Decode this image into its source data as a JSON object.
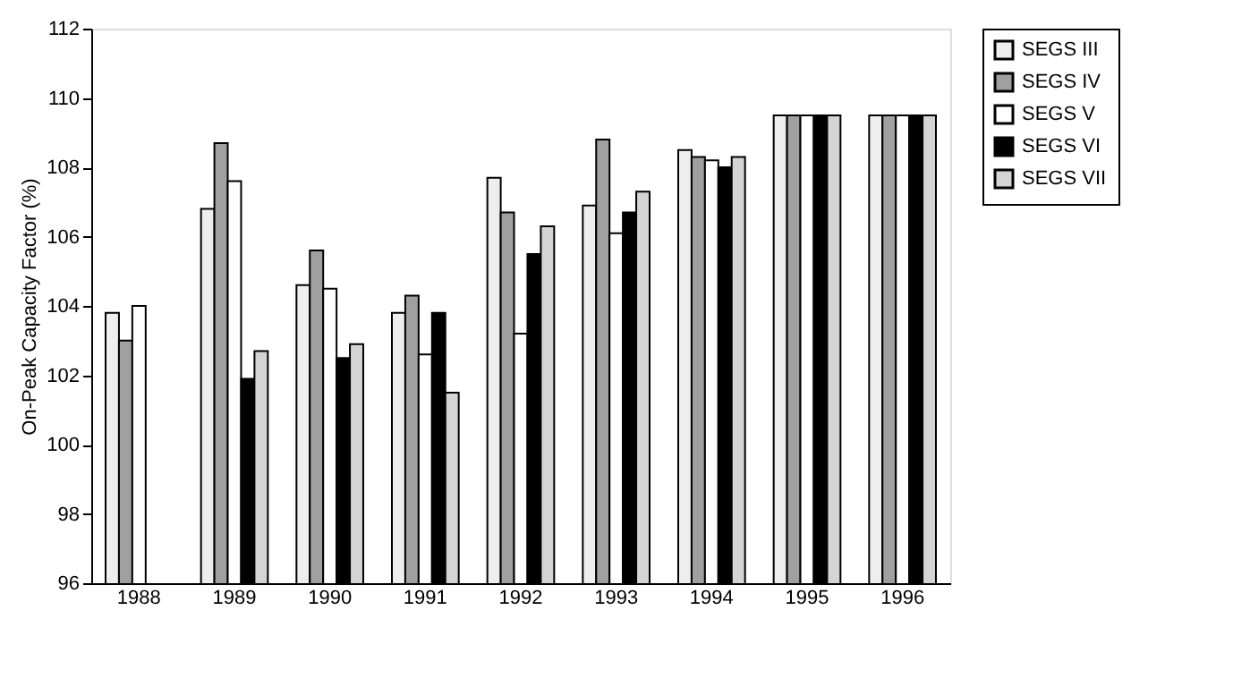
{
  "chart_data": {
    "type": "bar",
    "ylabel": "On-Peak Capacity Factor (%)",
    "categories": [
      "1988",
      "1989",
      "1990",
      "1991",
      "1992",
      "1993",
      "1994",
      "1995",
      "1996"
    ],
    "series": [
      {
        "name": "SEGS III",
        "color": "#eeeeee",
        "values": [
          103.8,
          106.8,
          104.6,
          103.8,
          107.7,
          106.9,
          108.5,
          109.5,
          109.5
        ]
      },
      {
        "name": "SEGS IV",
        "color": "#a0a0a0",
        "values": [
          103.0,
          108.7,
          105.6,
          104.3,
          106.7,
          108.8,
          108.3,
          109.5,
          109.5
        ]
      },
      {
        "name": "SEGS V",
        "color": "#ffffff",
        "values": [
          104.0,
          107.6,
          104.5,
          102.6,
          103.2,
          106.1,
          108.2,
          109.5,
          109.5
        ]
      },
      {
        "name": "SEGS VI",
        "color": "#000000",
        "values": [
          null,
          101.9,
          102.5,
          103.8,
          105.5,
          106.7,
          108.0,
          109.5,
          109.5
        ]
      },
      {
        "name": "SEGS VII",
        "color": "#d4d4d4",
        "values": [
          null,
          102.7,
          102.9,
          101.5,
          106.3,
          107.3,
          108.3,
          109.5,
          109.5
        ]
      }
    ],
    "ylim": [
      96,
      112
    ],
    "yticks": [
      96,
      98,
      100,
      102,
      104,
      106,
      108,
      110,
      112
    ],
    "grid": false,
    "legend": "top right"
  }
}
